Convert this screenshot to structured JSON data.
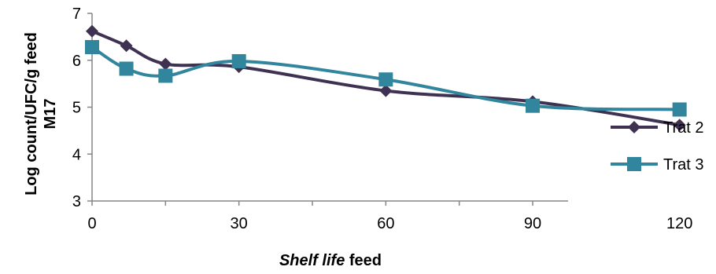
{
  "chart_data": {
    "type": "line",
    "xlabel": {
      "italic_part": "Shelf life",
      "rest": " feed"
    },
    "ylabel": [
      "Log count/UFC/g feed",
      "M17"
    ],
    "x_ticks": [
      0,
      30,
      60,
      90,
      120
    ],
    "y_ticks": [
      3,
      4,
      5,
      6,
      7
    ],
    "xlim": [
      0,
      130
    ],
    "ylim": [
      3,
      7
    ],
    "legend_position": "right",
    "grid": false,
    "series": [
      {
        "name": "Trat 2",
        "color": "#3f3151",
        "marker": "diamond",
        "x": [
          0,
          7,
          15,
          30,
          60,
          90,
          120
        ],
        "y": [
          6.62,
          6.31,
          5.92,
          5.86,
          5.35,
          5.12,
          4.62
        ]
      },
      {
        "name": "Trat 3",
        "color": "#31859c",
        "marker": "square",
        "x": [
          0,
          7,
          15,
          30,
          60,
          90,
          120
        ],
        "y": [
          6.28,
          5.82,
          5.67,
          5.98,
          5.59,
          5.03,
          4.95
        ]
      }
    ]
  }
}
